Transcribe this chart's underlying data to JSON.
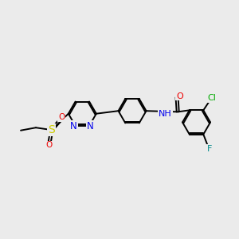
{
  "bg_color": "#ebebeb",
  "bond_color": "#000000",
  "bond_width": 1.4,
  "atoms": {
    "N_color": "#0000ee",
    "O_color": "#ee0000",
    "S_color": "#cccc00",
    "F_color": "#008888",
    "Cl_color": "#00aa00"
  },
  "font_size": 8,
  "fig_size": [
    3.0,
    3.0
  ],
  "dpi": 100,
  "xlim": [
    0,
    10
  ],
  "ylim": [
    0,
    10
  ]
}
